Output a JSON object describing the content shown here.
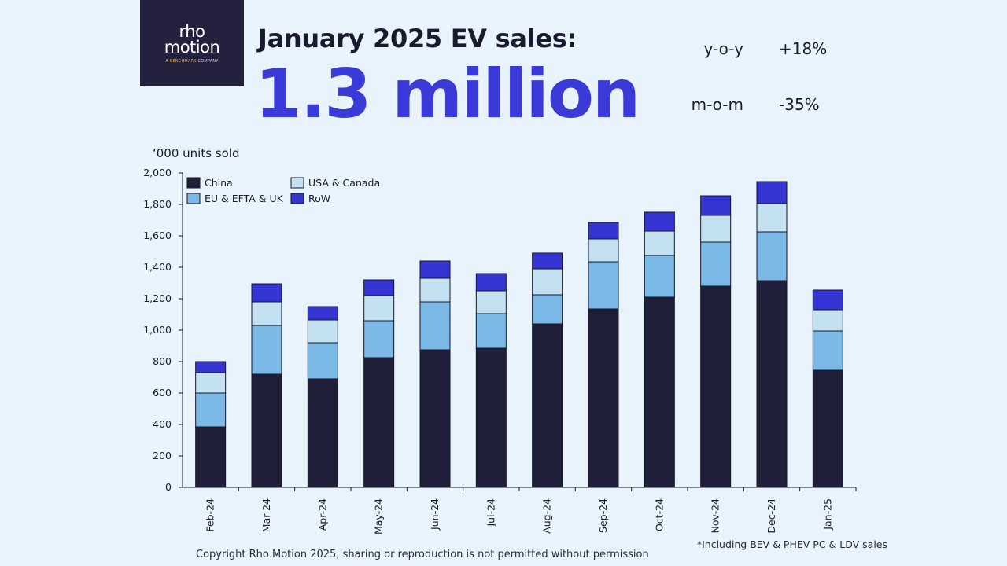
{
  "logo": {
    "brand": "rho\nmotion",
    "tag_prefix": "A ",
    "tag_accent": "BENCHMARK",
    "tag_suffix": " COMPANY"
  },
  "headline": "January 2025 EV sales:",
  "big_number": "1.3 million",
  "stats": [
    {
      "label": "y-o-y",
      "value": "+18%"
    },
    {
      "label": "m-o-m",
      "value": "-35%"
    }
  ],
  "footer": "Copyright Rho Motion 2025, sharing or reproduction is not permitted without permission",
  "footnote": "*Including BEV & PHEV PC & LDV sales",
  "colors": {
    "China": "#1f1f3a",
    "EU & EFTA & UK": "#7ab8e6",
    "USA & Canada": "#c4e1f1",
    "RoW": "#3535d4",
    "border": "#15152a"
  },
  "chart_data": {
    "type": "bar",
    "stacked": true,
    "ylabel": "‘000 units sold",
    "ylim": [
      0,
      2000
    ],
    "yticks": [
      0,
      200,
      400,
      600,
      800,
      1000,
      1200,
      1400,
      1600,
      1800,
      2000
    ],
    "ytick_labels": [
      "0",
      "200",
      "400",
      "600",
      "800",
      "1,000",
      "1,200",
      "1,400",
      "1,600",
      "1,800",
      "2,000"
    ],
    "categories": [
      "Feb-24",
      "Mar-24",
      "Apr-24",
      "May-24",
      "Jun-24",
      "Jul-24",
      "Aug-24",
      "Sep-24",
      "Oct-24",
      "Nov-24",
      "Dec-24",
      "Jan-25"
    ],
    "series": [
      {
        "name": "China",
        "values": [
          385,
          720,
          690,
          825,
          875,
          885,
          1040,
          1135,
          1210,
          1280,
          1315,
          745
        ]
      },
      {
        "name": "EU & EFTA & UK",
        "values": [
          215,
          310,
          230,
          235,
          305,
          220,
          185,
          300,
          265,
          280,
          310,
          250
        ]
      },
      {
        "name": "USA & Canada",
        "values": [
          130,
          150,
          145,
          160,
          150,
          145,
          165,
          145,
          155,
          170,
          180,
          135
        ]
      },
      {
        "name": "RoW",
        "values": [
          70,
          115,
          85,
          100,
          110,
          110,
          100,
          105,
          120,
          125,
          140,
          125
        ]
      }
    ],
    "legend": {
      "placement": "top-left",
      "columns": [
        [
          "China",
          "EU & EFTA & UK"
        ],
        [
          "USA & Canada",
          "RoW"
        ]
      ]
    },
    "grid": false
  }
}
